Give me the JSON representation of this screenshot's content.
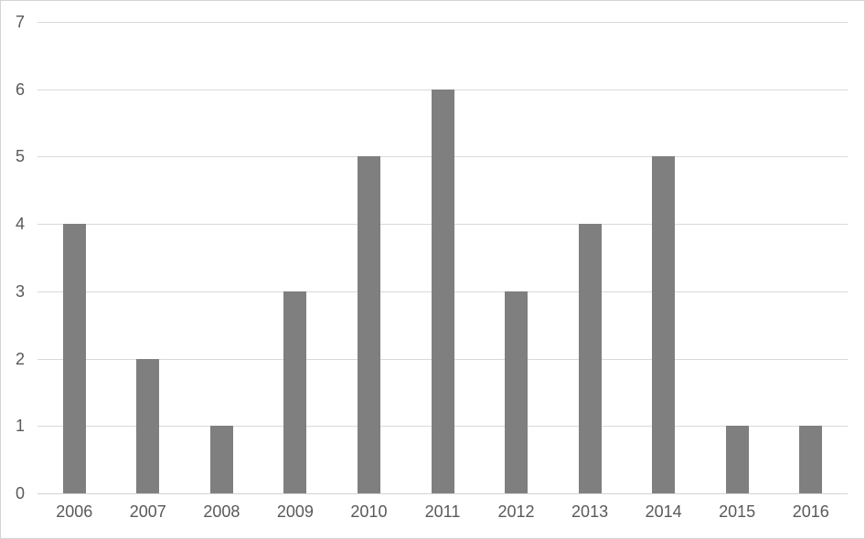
{
  "chart_data": {
    "type": "bar",
    "title": "",
    "xlabel": "",
    "ylabel": "",
    "categories": [
      "2006",
      "2007",
      "2008",
      "2009",
      "2010",
      "2011",
      "2012",
      "2013",
      "2014",
      "2015",
      "2016"
    ],
    "values": [
      4,
      2,
      1,
      3,
      5,
      6,
      3,
      4,
      5,
      1,
      1
    ],
    "ylim": [
      0,
      7
    ],
    "yticks": [
      0,
      1,
      2,
      3,
      4,
      5,
      6,
      7
    ],
    "grid": true,
    "legend": false,
    "colors": {
      "bar": "#7f7f7f",
      "gridline": "#d9d9d9",
      "axis_line": "#d2d2d2",
      "tick_label": "#595959",
      "background": "#ffffff",
      "frame_border": "#d4d4d4"
    }
  }
}
